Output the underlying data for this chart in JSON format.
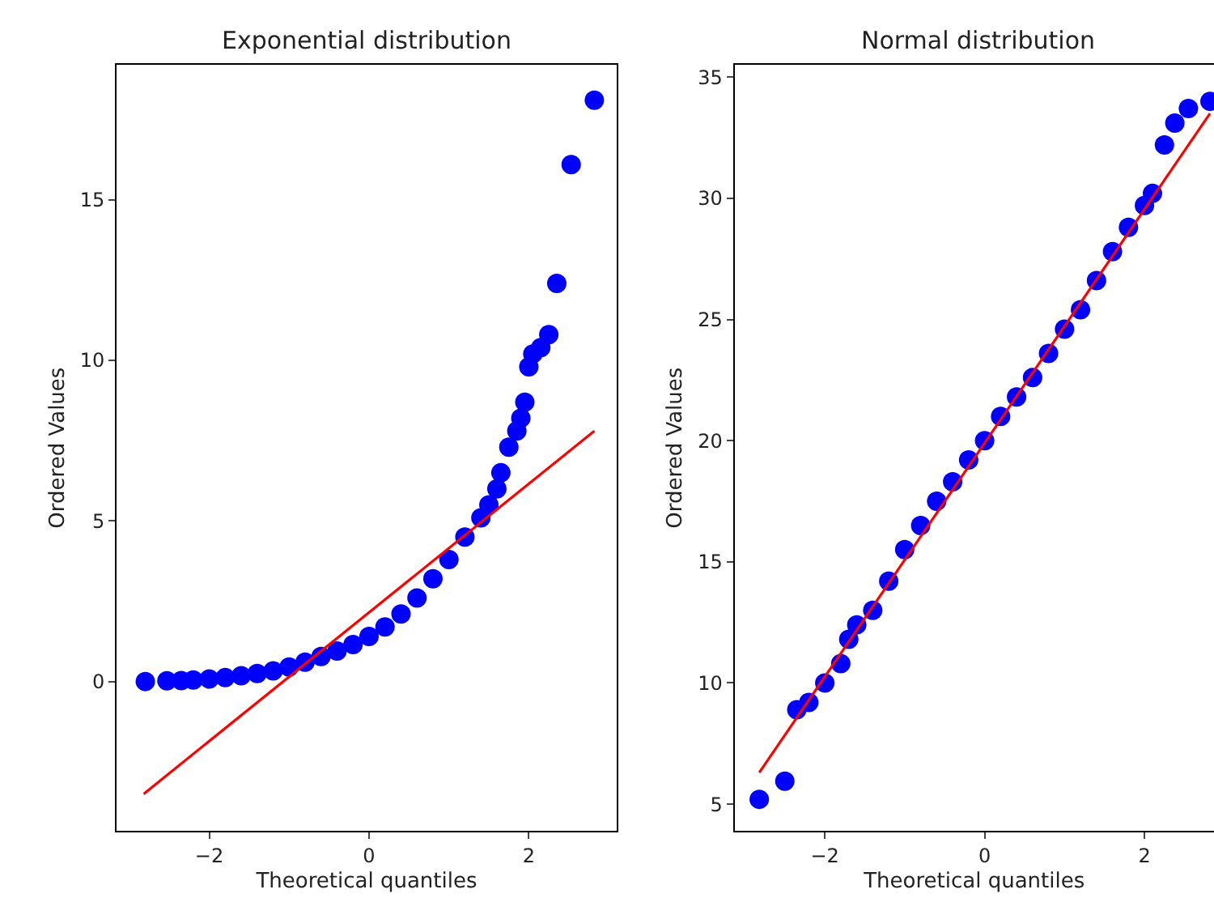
{
  "chart_data": [
    {
      "type": "scatter",
      "title": "Exponential distribution",
      "xlabel": "Theoretical quantiles",
      "ylabel": "Ordered Values",
      "xlim": [
        -3.16,
        3.1
      ],
      "ylim": [
        -4.65,
        19.2
      ],
      "xticks": [
        {
          "value": -2,
          "label": "−2"
        },
        0,
        2
      ],
      "yticks": [
        0,
        5,
        10,
        15
      ],
      "series": [
        {
          "marker": "circle",
          "color": "#0000ff",
          "x": [
            -2.8,
            -2.53,
            -2.35,
            -2.2,
            -2.0,
            -1.8,
            -1.6,
            -1.4,
            -1.2,
            -1.0,
            -0.8,
            -0.6,
            -0.4,
            -0.2,
            0,
            0.2,
            0.4,
            0.6,
            0.8,
            1.0,
            1.2,
            1.4,
            1.5,
            1.6,
            1.65,
            1.75,
            1.85,
            1.9,
            1.95,
            2.0,
            2.05,
            2.15,
            2.25,
            2.35,
            2.53,
            2.82
          ],
          "values": [
            0.0,
            0.02,
            0.03,
            0.05,
            0.08,
            0.12,
            0.18,
            0.25,
            0.33,
            0.45,
            0.6,
            0.78,
            0.95,
            1.15,
            1.4,
            1.7,
            2.1,
            2.6,
            3.2,
            3.8,
            4.5,
            5.1,
            5.5,
            6.0,
            6.5,
            7.3,
            7.8,
            8.2,
            8.7,
            9.8,
            10.2,
            10.4,
            10.8,
            12.4,
            16.1,
            18.1
          ]
        },
        {
          "type": "line",
          "marker": "none",
          "line_style": "solid",
          "color": "#ff0000",
          "x": [
            -2.82,
            2.82
          ],
          "values": [
            -3.5,
            7.8
          ]
        }
      ]
    },
    {
      "type": "scatter",
      "title": "Normal distribution",
      "xlabel": "Theoretical quantiles",
      "ylabel": "Ordered Values",
      "xlim": [
        -3.13,
        2.87
      ],
      "ylim": [
        3.9,
        35.5
      ],
      "xticks": [
        {
          "value": -2,
          "label": "−2"
        },
        0,
        2
      ],
      "yticks": [
        5,
        10,
        15,
        20,
        25,
        30,
        35
      ],
      "series": [
        {
          "marker": "circle",
          "color": "#0000ff",
          "x": [
            -2.82,
            -2.5,
            -2.35,
            -2.2,
            -2.0,
            -1.8,
            -1.7,
            -1.6,
            -1.4,
            -1.2,
            -1.0,
            -0.8,
            -0.6,
            -0.4,
            -0.2,
            0,
            0.2,
            0.4,
            0.6,
            0.8,
            1.0,
            1.2,
            1.4,
            1.6,
            1.8,
            2.0,
            2.1,
            2.25,
            2.38,
            2.55,
            2.82
          ],
          "values": [
            5.2,
            5.95,
            8.9,
            9.2,
            10.0,
            10.8,
            11.8,
            12.4,
            13.0,
            14.2,
            15.5,
            16.5,
            17.5,
            18.3,
            19.2,
            20.0,
            21.0,
            21.8,
            22.6,
            23.6,
            24.6,
            25.4,
            26.6,
            27.8,
            28.8,
            29.7,
            30.2,
            32.2,
            33.1,
            33.7,
            34.0
          ]
        },
        {
          "type": "line",
          "marker": "none",
          "line_style": "solid",
          "color": "#ff0000",
          "x": [
            -2.82,
            2.82
          ],
          "values": [
            6.3,
            33.5
          ]
        }
      ]
    }
  ]
}
